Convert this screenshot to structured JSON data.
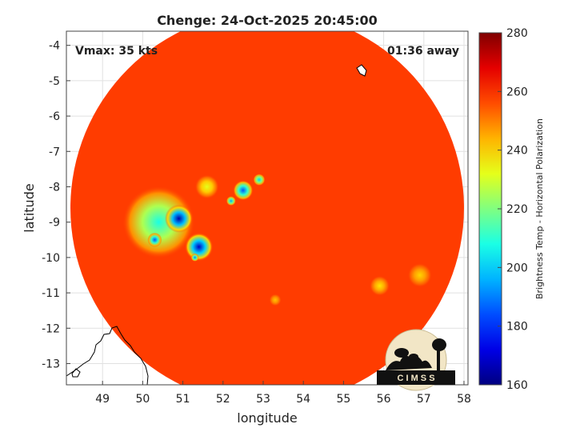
{
  "chart_data": {
    "type": "heatmap",
    "title": "Chenge: 24-Oct-2025 20:45:00",
    "xlabel": "longitude",
    "ylabel": "latitude",
    "xlim": [
      48.1,
      58.1
    ],
    "ylim": [
      -13.6,
      -3.6
    ],
    "x_ticks": [
      49,
      50,
      51,
      52,
      53,
      54,
      55,
      56,
      57,
      58
    ],
    "y_ticks": [
      -4,
      -5,
      -6,
      -7,
      -8,
      -9,
      -10,
      -11,
      -12,
      -13
    ],
    "grid": true,
    "swath_center": [
      53.1,
      -8.6
    ],
    "swath_radius_deg": 4.9,
    "background_temp_k": 258,
    "convection_cells": [
      {
        "lon": 50.4,
        "lat": -9.0,
        "radius_deg": 0.9,
        "min_temp_k": 208
      },
      {
        "lon": 50.9,
        "lat": -8.9,
        "radius_deg": 0.35,
        "min_temp_k": 165
      },
      {
        "lon": 51.4,
        "lat": -9.7,
        "radius_deg": 0.35,
        "min_temp_k": 168
      },
      {
        "lon": 50.3,
        "lat": -9.5,
        "radius_deg": 0.18,
        "min_temp_k": 185
      },
      {
        "lon": 51.3,
        "lat": -10.0,
        "radius_deg": 0.1,
        "min_temp_k": 190
      },
      {
        "lon": 52.5,
        "lat": -8.1,
        "radius_deg": 0.25,
        "min_temp_k": 185
      },
      {
        "lon": 52.2,
        "lat": -8.4,
        "radius_deg": 0.12,
        "min_temp_k": 195
      },
      {
        "lon": 52.9,
        "lat": -7.8,
        "radius_deg": 0.15,
        "min_temp_k": 200
      },
      {
        "lon": 51.6,
        "lat": -8.0,
        "radius_deg": 0.3,
        "min_temp_k": 232
      },
      {
        "lon": 55.9,
        "lat": -10.8,
        "radius_deg": 0.25,
        "min_temp_k": 238
      },
      {
        "lon": 56.9,
        "lat": -10.5,
        "radius_deg": 0.3,
        "min_temp_k": 240
      },
      {
        "lon": 53.3,
        "lat": -11.2,
        "radius_deg": 0.15,
        "min_temp_k": 242
      }
    ],
    "colorbar": {
      "label": "Brightness Temp - Horizontal Polarization",
      "min": 160,
      "max": 280,
      "ticks": [
        280,
        260,
        240,
        220,
        200,
        180,
        160
      ],
      "colormap": "jet"
    },
    "annotations": {
      "vmax": "Vmax: 35 kts",
      "time_away": "01:36 away"
    }
  },
  "logo": {
    "text": "C I M S S"
  }
}
